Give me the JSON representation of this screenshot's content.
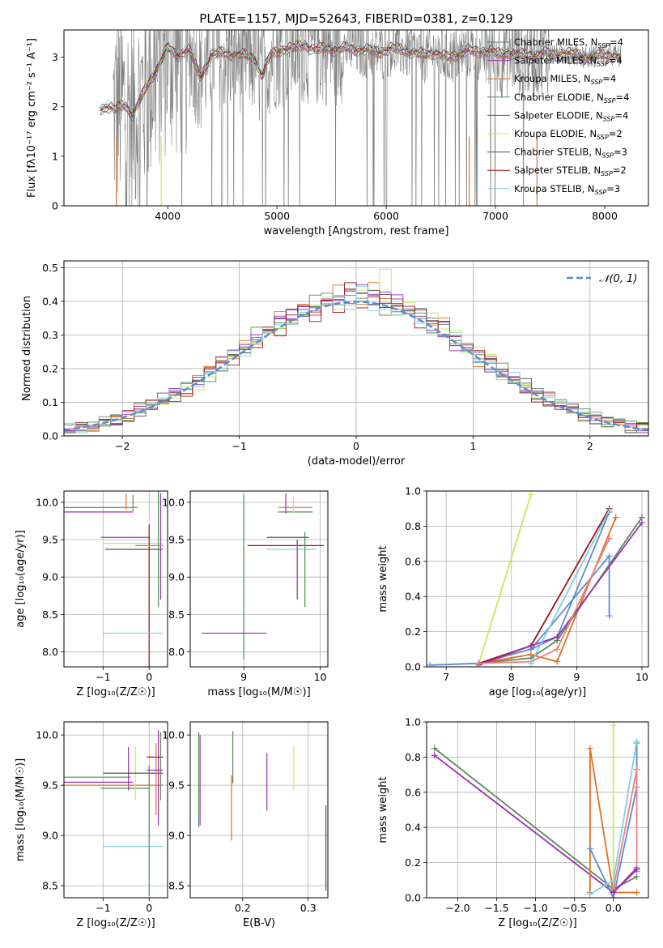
{
  "figure_title": "PLATE=1157, MJD=52643, FIBERID=0381, z=0.129",
  "colors": {
    "spectrum": "#7f7f7f",
    "normal_curve": "#5b8bd6",
    "grid": "#b0b0b0",
    "models": [
      "#4c8c5c",
      "#9b30b0",
      "#e07020",
      "#5a8a5a",
      "#9b30b0",
      "#c8e85a",
      "#505050",
      "#a01010",
      "#80d0e0"
    ]
  },
  "chart_data": [
    {
      "id": "spectrum",
      "type": "line",
      "title": "PLATE=1157, MJD=52643, FIBERID=0381, z=0.129",
      "xlabel": "wavelength [Angstrom, rest frame]",
      "ylabel": "Flux [fλ10⁻¹⁷ erg cm⁻² s⁻¹ A⁻¹]",
      "xlim": [
        3050,
        8400
      ],
      "ylim": [
        0,
        3.55
      ],
      "xticks": [
        4000,
        5000,
        6000,
        7000,
        8000
      ],
      "yticks": [
        0,
        1,
        2,
        3
      ],
      "grid": false,
      "legend_position": "top-right",
      "legend": [
        "Chabrier MILES, NSSP=4",
        "Salpeter MILES, NSSP=4",
        "Kroupa MILES, NSSP=4",
        "Chabrier ELODIE, NSSP=4",
        "Salpeter ELODIE, NSSP=4",
        "Kroupa ELODIE, NSSP=2",
        "Chabrier STELIB, NSSP=3",
        "Salpeter STELIB, NSSP=2",
        "Kroupa STELIB, NSSP=3"
      ],
      "model_continuum": {
        "x": [
          3380,
          3450,
          3520,
          3600,
          3680,
          3760,
          3840,
          3920,
          4000,
          4100,
          4200,
          4300,
          4400,
          4500,
          4600,
          4700,
          4800,
          4860,
          4950,
          5050,
          5150,
          5250,
          5350,
          5450,
          5550,
          5650,
          5750,
          5850,
          5950,
          6050,
          6150,
          6250,
          6350,
          6450,
          6550,
          6650,
          6750,
          6850,
          6950,
          7050,
          7150,
          7250,
          7350,
          7450,
          7550,
          7650,
          7750,
          7850,
          7950,
          8050,
          8150
        ],
        "y": [
          1.95,
          2.0,
          1.95,
          2.05,
          1.85,
          2.2,
          2.55,
          2.85,
          3.2,
          3.05,
          3.15,
          2.6,
          3.05,
          3.1,
          3.05,
          3.05,
          3.0,
          2.6,
          3.1,
          3.15,
          3.2,
          3.25,
          3.15,
          3.2,
          3.15,
          3.2,
          3.15,
          3.15,
          3.1,
          3.2,
          3.15,
          3.1,
          3.05,
          3.1,
          3.0,
          3.05,
          3.15,
          3.1,
          3.15,
          3.05,
          3.1,
          3.05,
          3.05,
          3.1,
          3.05,
          3.1,
          3.05,
          3.0,
          3.05,
          3.05,
          3.0
        ]
      },
      "data_range": [
        3500,
        8150
      ]
    },
    {
      "id": "residuals",
      "type": "line",
      "xlabel": "(data-model)/error",
      "ylabel": "Normed distribution",
      "xlim": [
        -2.5,
        2.5
      ],
      "ylim": [
        0,
        0.52
      ],
      "xticks": [
        -2,
        -1,
        0,
        1,
        2
      ],
      "yticks": [
        0.0,
        0.1,
        0.2,
        0.3,
        0.4,
        0.5
      ],
      "grid": true,
      "legend_position": "top-right",
      "legend": [
        "𝒩(0, 1)"
      ],
      "bin_width": 0.1,
      "hist_amplitude": 0.42,
      "hist_peak_max": 0.495
    },
    {
      "id": "age-vs-Z",
      "type": "scatter",
      "xlabel": "Z [log₁₀(Z/Z☉)]",
      "ylabel": "age  [log₁₀(age/yr)]",
      "xlim": [
        -1.85,
        0.4
      ],
      "ylim": [
        7.8,
        10.15
      ],
      "xticks": [
        -1,
        0
      ],
      "yticks": [
        8.0,
        8.5,
        9.0,
        9.5,
        10.0
      ],
      "grid": true,
      "errorbars": [
        {
          "x": -0.7,
          "y": 9.93,
          "xlo": -1.85,
          "xhi": -0.25,
          "ylo": 9.93,
          "yhi": 9.93
        },
        {
          "x": -1.1,
          "y": 9.87,
          "xlo": -1.85,
          "xhi": -0.35,
          "ylo": 9.87,
          "yhi": 9.87
        },
        {
          "x": -0.5,
          "y": 10.0,
          "xlo": -0.5,
          "xhi": -0.5,
          "ylo": 9.9,
          "yhi": 10.12
        },
        {
          "x": -0.35,
          "y": 10.0,
          "xlo": -0.35,
          "xhi": -0.35,
          "ylo": 9.88,
          "yhi": 10.1
        },
        {
          "x": -0.45,
          "y": 9.53,
          "xlo": -1.05,
          "xhi": 0.02,
          "ylo": 9.53,
          "yhi": 9.53
        },
        {
          "x": -0.25,
          "y": 9.45,
          "xlo": -1.0,
          "xhi": 0.3,
          "ylo": 9.45,
          "yhi": 9.45
        },
        {
          "x": -0.6,
          "y": 9.37,
          "xlo": -0.95,
          "xhi": 0.3,
          "ylo": 9.37,
          "yhi": 9.37
        },
        {
          "x": 0.0,
          "y": 9.6,
          "xlo": 0.0,
          "xhi": 0.0,
          "ylo": 7.8,
          "yhi": 9.7
        },
        {
          "x": -0.45,
          "y": 8.25,
          "xlo": -1.0,
          "xhi": 0.3,
          "ylo": 8.25,
          "yhi": 8.25
        },
        {
          "x": 0.2,
          "y": 9.5,
          "xlo": 0.2,
          "xhi": 0.2,
          "ylo": 8.6,
          "yhi": 10.15
        },
        {
          "x": 0.25,
          "y": 9.6,
          "xlo": 0.25,
          "xhi": 0.25,
          "ylo": 8.7,
          "yhi": 10.12
        },
        {
          "x": 0.1,
          "y": 9.42,
          "xlo": -0.3,
          "xhi": 0.3,
          "ylo": 9.42,
          "yhi": 9.42
        }
      ]
    },
    {
      "id": "age-vs-mass",
      "type": "scatter",
      "xlabel": "mass [log₁₀(M/M☉)]",
      "ylabel": "",
      "xlim": [
        8.3,
        10.1
      ],
      "ylim": [
        7.8,
        10.15
      ],
      "xticks": [
        9,
        10
      ],
      "yticks": [
        8.0,
        8.5,
        9.0,
        9.5,
        10.0
      ],
      "grid": true,
      "errorbars": [
        {
          "x": 9.0,
          "y": 9.0,
          "xlo": 9.0,
          "xhi": 9.0,
          "ylo": 7.9,
          "yhi": 10.1
        },
        {
          "x": 8.85,
          "y": 8.25,
          "xlo": 8.45,
          "xhi": 9.3,
          "ylo": 8.25,
          "yhi": 8.25
        },
        {
          "x": 9.75,
          "y": 9.93,
          "xlo": 9.45,
          "xhi": 9.9,
          "ylo": 9.93,
          "yhi": 9.93
        },
        {
          "x": 9.7,
          "y": 9.87,
          "xlo": 9.45,
          "xhi": 9.9,
          "ylo": 9.87,
          "yhi": 9.87
        },
        {
          "x": 9.55,
          "y": 10.0,
          "xlo": 9.55,
          "xhi": 9.55,
          "ylo": 9.85,
          "yhi": 10.12
        },
        {
          "x": 9.65,
          "y": 10.0,
          "xlo": 9.65,
          "xhi": 9.65,
          "ylo": 9.85,
          "yhi": 10.08
        },
        {
          "x": 9.6,
          "y": 9.53,
          "xlo": 9.3,
          "xhi": 9.85,
          "ylo": 9.53,
          "yhi": 9.53
        },
        {
          "x": 9.6,
          "y": 9.42,
          "xlo": 9.05,
          "xhi": 10.05,
          "ylo": 9.42,
          "yhi": 9.42
        },
        {
          "x": 9.65,
          "y": 9.37,
          "xlo": 9.3,
          "xhi": 9.95,
          "ylo": 9.37,
          "yhi": 9.37
        },
        {
          "x": 9.8,
          "y": 9.3,
          "xlo": 9.8,
          "xhi": 9.8,
          "ylo": 8.6,
          "yhi": 9.6
        },
        {
          "x": 9.7,
          "y": 9.3,
          "xlo": 9.7,
          "xhi": 9.7,
          "ylo": 8.7,
          "yhi": 9.5
        }
      ]
    },
    {
      "id": "mass-weight-vs-age",
      "type": "line",
      "xlabel": "age  [log₁₀(age/yr)]",
      "ylabel": "mass weight",
      "xlim": [
        6.7,
        10.1
      ],
      "ylim": [
        0,
        1.0
      ],
      "xticks": [
        7,
        8,
        9,
        10
      ],
      "yticks": [
        0.0,
        0.2,
        0.4,
        0.6,
        0.8,
        1.0
      ],
      "grid": true,
      "series": [
        {
          "x": [
            7.5,
            8.3
          ],
          "y": [
            0.02,
            0.98
          ]
        },
        {
          "x": [
            6.75,
            7.5,
            8.3,
            8.7,
            9.5
          ],
          "y": [
            0.01,
            0.02,
            0.1,
            0.17,
            0.88
          ]
        },
        {
          "x": [
            7.5,
            8.3,
            8.7,
            9.6
          ],
          "y": [
            0.02,
            0.07,
            0.03,
            0.85
          ]
        },
        {
          "x": [
            7.5,
            8.3,
            8.7,
            10.0
          ],
          "y": [
            0.02,
            0.05,
            0.15,
            0.85
          ]
        },
        {
          "x": [
            7.5,
            8.3,
            9.5
          ],
          "y": [
            0.02,
            0.12,
            0.9
          ]
        },
        {
          "x": [
            8.3,
            9.5,
            9.5
          ],
          "y": [
            0.1,
            0.63,
            0.29
          ]
        },
        {
          "x": [
            7.5,
            8.3,
            8.7,
            10.0
          ],
          "y": [
            0.01,
            0.12,
            0.17,
            0.82
          ]
        },
        {
          "x": [
            7.5,
            8.3,
            8.7,
            9.5
          ],
          "y": [
            0.02,
            0.03,
            0.1,
            0.73
          ]
        },
        {
          "x": [
            8.3,
            9.5
          ],
          "y": [
            0.02,
            0.89
          ]
        }
      ]
    },
    {
      "id": "mass-vs-Z",
      "type": "scatter",
      "xlabel": "Z [log₁₀(Z/Z☉)]",
      "ylabel": "mass [log₁₀(M/M☉)]",
      "xlim": [
        -1.85,
        0.4
      ],
      "ylim": [
        8.38,
        10.13
      ],
      "xticks": [
        -1,
        0
      ],
      "yticks": [
        8.5,
        9.0,
        9.5,
        10.0
      ],
      "grid": true,
      "errorbars": [
        {
          "x": -1.0,
          "y": 9.58,
          "xlo": -1.85,
          "xhi": -0.4,
          "ylo": 9.58,
          "yhi": 9.58
        },
        {
          "x": -1.0,
          "y": 9.53,
          "xlo": -1.85,
          "xhi": -0.35,
          "ylo": 9.53,
          "yhi": 9.53
        },
        {
          "x": -0.6,
          "y": 9.5,
          "xlo": -1.85,
          "xhi": 0.3,
          "ylo": 9.5,
          "yhi": 9.5
        },
        {
          "x": -0.5,
          "y": 9.47,
          "xlo": -1.05,
          "xhi": 0.0,
          "ylo": 9.47,
          "yhi": 9.47
        },
        {
          "x": -0.45,
          "y": 9.6,
          "xlo": -0.45,
          "xhi": -0.45,
          "ylo": 9.45,
          "yhi": 9.88
        },
        {
          "x": -0.3,
          "y": 9.6,
          "xlo": -0.3,
          "xhi": -0.3,
          "ylo": 9.35,
          "yhi": 9.88
        },
        {
          "x": -0.3,
          "y": 9.62,
          "xlo": -1.0,
          "xhi": 0.3,
          "ylo": 9.62,
          "yhi": 9.62
        },
        {
          "x": -0.05,
          "y": 9.78,
          "xlo": -0.05,
          "xhi": 0.3,
          "ylo": 9.78,
          "yhi": 9.78
        },
        {
          "x": 0.0,
          "y": 8.89,
          "xlo": -1.0,
          "xhi": 0.3,
          "ylo": 8.89,
          "yhi": 8.89
        },
        {
          "x": 0.0,
          "y": 9.4,
          "xlo": 0.0,
          "xhi": 0.0,
          "ylo": 8.4,
          "yhi": 9.7
        },
        {
          "x": 0.2,
          "y": 9.6,
          "xlo": 0.2,
          "xhi": 0.2,
          "ylo": 9.1,
          "yhi": 10.05
        },
        {
          "x": 0.15,
          "y": 9.5,
          "xlo": 0.15,
          "xhi": 0.15,
          "ylo": 9.2,
          "yhi": 9.92
        },
        {
          "x": 0.25,
          "y": 9.7,
          "xlo": 0.25,
          "xhi": 0.25,
          "ylo": 9.35,
          "yhi": 10.03
        },
        {
          "x": 0.0,
          "y": 9.65,
          "xlo": -0.05,
          "xhi": 0.3,
          "ylo": 9.65,
          "yhi": 9.65
        }
      ]
    },
    {
      "id": "mass-vs-EBV",
      "type": "scatter",
      "xlabel": "E(B-V)",
      "ylabel": "",
      "xlim": [
        0.12,
        0.33
      ],
      "ylim": [
        8.38,
        10.13
      ],
      "xticks": [
        0.2,
        0.3
      ],
      "yticks": [
        8.5,
        9.0,
        9.5,
        10.0
      ],
      "grid": true,
      "errorbars": [
        {
          "x": 0.133,
          "y": 9.55,
          "xlo": 0.133,
          "xhi": 0.133,
          "ylo": 9.08,
          "yhi": 10.03
        },
        {
          "x": 0.135,
          "y": 9.6,
          "xlo": 0.135,
          "xhi": 0.135,
          "ylo": 9.1,
          "yhi": 10.0
        },
        {
          "x": 0.183,
          "y": 9.3,
          "xlo": 0.183,
          "xhi": 0.183,
          "ylo": 8.95,
          "yhi": 9.6
        },
        {
          "x": 0.185,
          "y": 9.8,
          "xlo": 0.185,
          "xhi": 0.185,
          "ylo": 9.52,
          "yhi": 10.04
        },
        {
          "x": 0.237,
          "y": 9.55,
          "xlo": 0.237,
          "xhi": 0.237,
          "ylo": 9.25,
          "yhi": 9.82
        },
        {
          "x": 0.278,
          "y": 9.7,
          "xlo": 0.278,
          "xhi": 0.278,
          "ylo": 9.45,
          "yhi": 9.9
        },
        {
          "x": 0.327,
          "y": 8.9,
          "xlo": 0.327,
          "xhi": 0.327,
          "ylo": 8.45,
          "yhi": 9.3
        }
      ]
    },
    {
      "id": "mass-weight-vs-Z",
      "type": "line",
      "xlabel": "Z [log₁₀(Z/Z☉)]",
      "ylabel": "mass weight",
      "xlim": [
        -2.4,
        0.45
      ],
      "ylim": [
        0,
        1.0
      ],
      "xticks": [
        -2.0,
        -1.5,
        -1.0,
        -0.5,
        0.0
      ],
      "yticks": [
        0.0,
        0.2,
        0.4,
        0.6,
        0.8,
        1.0
      ],
      "grid": true,
      "series": [
        {
          "x": [
            -2.3,
            0.0,
            0.3
          ],
          "y": [
            0.85,
            0.05,
            0.12
          ]
        },
        {
          "x": [
            -2.3,
            0.0,
            0.3
          ],
          "y": [
            0.81,
            0.03,
            0.17
          ]
        },
        {
          "x": [
            -0.3,
            -0.3,
            0.0,
            0.3
          ],
          "y": [
            0.03,
            0.85,
            0.03,
            0.03
          ]
        },
        {
          "x": [
            0.0,
            0.0
          ],
          "y": [
            0.03,
            0.98
          ]
        },
        {
          "x": [
            -0.3,
            0.0,
            0.3,
            0.3
          ],
          "y": [
            0.28,
            0.0,
            0.63,
            0.88
          ]
        },
        {
          "x": [
            0.0,
            0.3,
            0.3
          ],
          "y": [
            0.05,
            0.73,
            0.15
          ]
        },
        {
          "x": [
            -0.3,
            0.0,
            0.3
          ],
          "y": [
            0.02,
            0.1,
            0.89
          ]
        },
        {
          "x": [
            0.0,
            0.3
          ],
          "y": [
            0.03,
            0.16
          ]
        }
      ]
    }
  ]
}
